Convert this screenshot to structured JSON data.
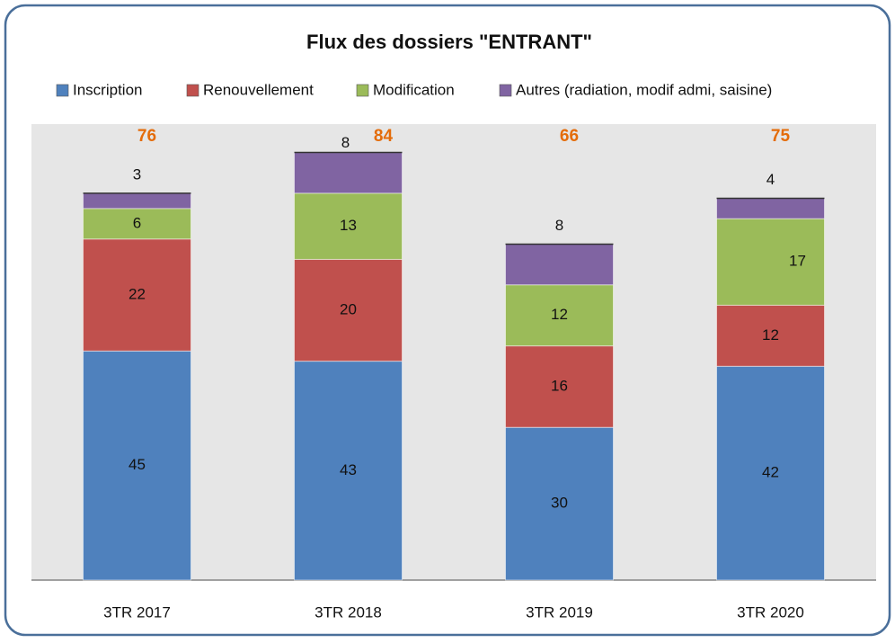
{
  "chart_data": {
    "type": "stacked_bar",
    "title": "Flux des dossiers \"ENTRANT\"",
    "categories": [
      "3TR 2017",
      "3TR 2018",
      "3TR 2019",
      "3TR 2020"
    ],
    "series": [
      {
        "name": "Inscription",
        "color": "#4f81bd",
        "values": [
          45,
          43,
          30,
          42
        ]
      },
      {
        "name": "Renouvellement",
        "color": "#c0504d",
        "values": [
          22,
          20,
          16,
          12
        ]
      },
      {
        "name": "Modification",
        "color": "#9bbb59",
        "values": [
          6,
          13,
          12,
          17
        ]
      },
      {
        "name": "Autres (radiation, modif admi, saisine)",
        "color": "#8064a2",
        "values": [
          3,
          8,
          8,
          4
        ]
      }
    ],
    "totals": [
      76,
      84,
      66,
      75
    ],
    "totals_color": "#e46c0a",
    "legend": "top"
  }
}
